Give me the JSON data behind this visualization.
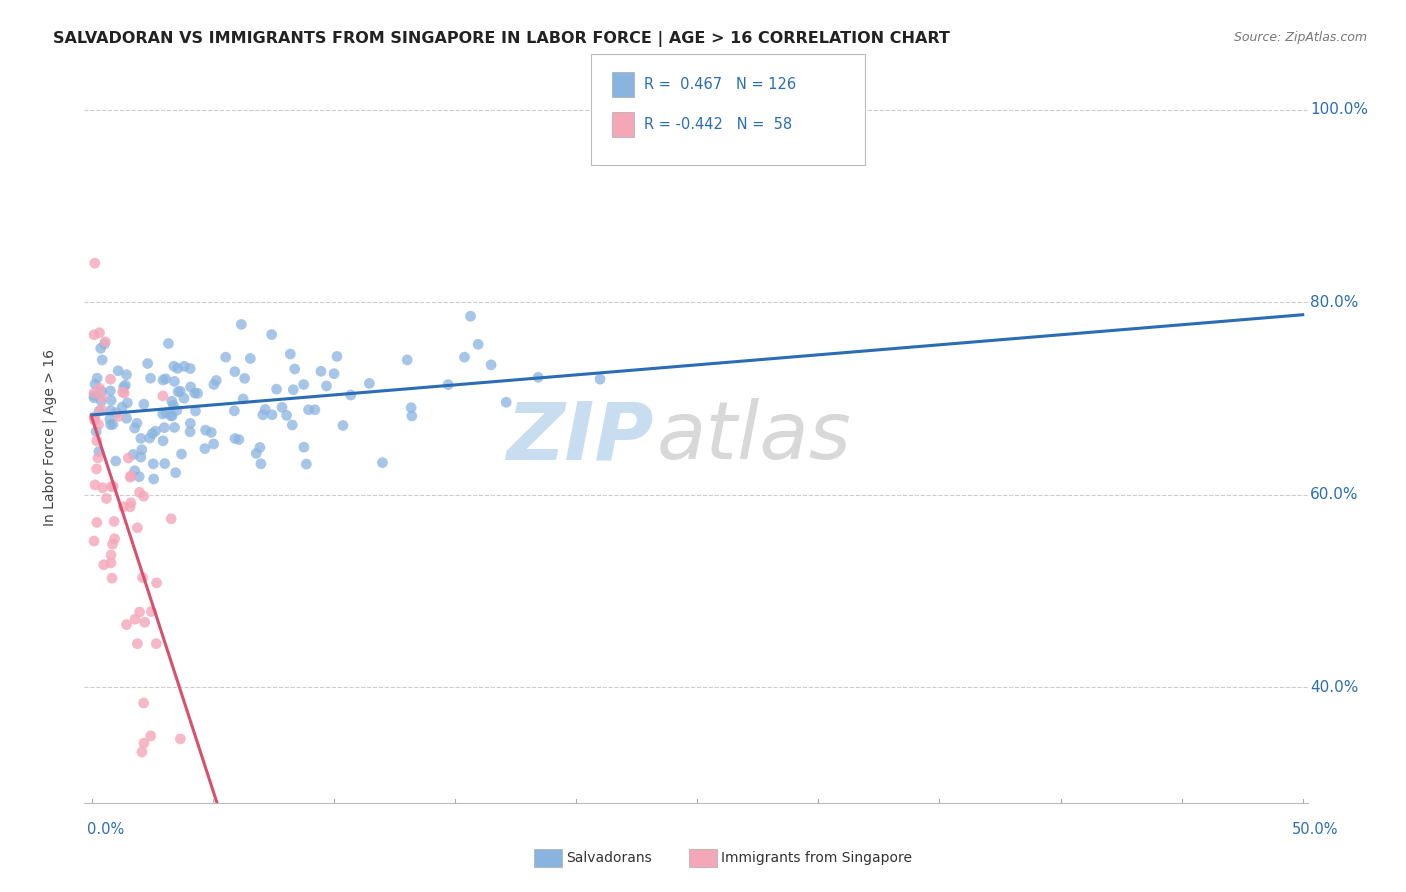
{
  "title": "SALVADORAN VS IMMIGRANTS FROM SINGAPORE IN LABOR FORCE | AGE > 16 CORRELATION CHART",
  "source": "Source: ZipAtlas.com",
  "ylabel": "In Labor Force | Age > 16",
  "yticks": [
    "40.0%",
    "60.0%",
    "80.0%",
    "100.0%"
  ],
  "ytick_vals": [
    0.4,
    0.6,
    0.8,
    1.0
  ],
  "ymin": 0.28,
  "ymax": 1.04,
  "xmin": -0.003,
  "xmax": 0.502,
  "blue_color": "#8ab4e0",
  "pink_color": "#f4a7b9",
  "blue_line_color": "#2a6db5",
  "pink_line_color": "#d94f6e",
  "pink_line_dash_color": "#e8a0b0",
  "watermark_zip_color": "#c8ddf0",
  "watermark_atlas_color": "#d8d8d8"
}
